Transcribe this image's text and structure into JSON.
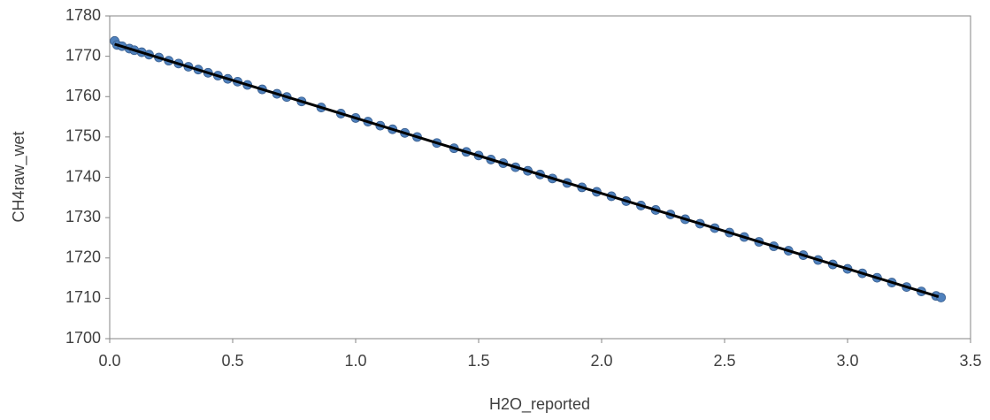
{
  "chart_data": {
    "type": "scatter",
    "x_label": "H2O_reported",
    "y_label": "CH4raw_wet",
    "xlim": [
      0,
      3.5
    ],
    "xticks": [
      {
        "value": 0,
        "label": "0.0"
      },
      0.5,
      {
        "value": 1,
        "label": "1.0"
      },
      1.5,
      {
        "value": 2,
        "label": "2.0"
      },
      2.5,
      {
        "value": 3,
        "label": "3.0"
      },
      3.5
    ],
    "ylim": [
      1700,
      1780
    ],
    "yticks": [
      1700,
      1710,
      1720,
      1730,
      1740,
      1750,
      1760,
      1770,
      1780
    ],
    "series": [
      {
        "type": "scatter",
        "color": "#4f81bd",
        "x": [
          0.02,
          0.03,
          0.05,
          0.08,
          0.1,
          0.13,
          0.16,
          0.2,
          0.24,
          0.28,
          0.32,
          0.36,
          0.4,
          0.44,
          0.48,
          0.52,
          0.56,
          0.62,
          0.68,
          0.72,
          0.78,
          0.86,
          0.94,
          1.0,
          1.05,
          1.1,
          1.15,
          1.2,
          1.25,
          1.33,
          1.4,
          1.45,
          1.5,
          1.55,
          1.6,
          1.65,
          1.7,
          1.75,
          1.8,
          1.86,
          1.92,
          1.98,
          2.04,
          2.1,
          2.16,
          2.22,
          2.28,
          2.34,
          2.4,
          2.46,
          2.52,
          2.58,
          2.64,
          2.7,
          2.76,
          2.82,
          2.88,
          2.94,
          3.0,
          3.06,
          3.12,
          3.18,
          3.24,
          3.3,
          3.36,
          3.38
        ],
        "values": [
          1773.8,
          1772.8,
          1772.5,
          1771.9,
          1771.5,
          1771.0,
          1770.4,
          1769.7,
          1768.9,
          1768.2,
          1767.4,
          1766.7,
          1765.9,
          1765.2,
          1764.4,
          1763.7,
          1762.9,
          1761.8,
          1760.7,
          1759.9,
          1758.8,
          1757.3,
          1755.8,
          1754.7,
          1753.8,
          1752.8,
          1751.9,
          1751.0,
          1750.0,
          1748.5,
          1747.2,
          1746.3,
          1745.4,
          1744.4,
          1743.5,
          1742.5,
          1741.6,
          1740.7,
          1739.7,
          1738.6,
          1737.5,
          1736.4,
          1735.3,
          1734.1,
          1733.0,
          1731.9,
          1730.8,
          1729.6,
          1728.5,
          1727.4,
          1726.3,
          1725.2,
          1724.0,
          1722.9,
          1721.8,
          1720.7,
          1719.5,
          1718.4,
          1717.3,
          1716.2,
          1715.1,
          1713.9,
          1712.8,
          1711.7,
          1710.6,
          1710.2
        ]
      },
      {
        "type": "line",
        "color": "#000000",
        "x": [
          0.02,
          3.37
        ],
        "values": [
          1773.0,
          1710.4
        ]
      }
    ]
  }
}
